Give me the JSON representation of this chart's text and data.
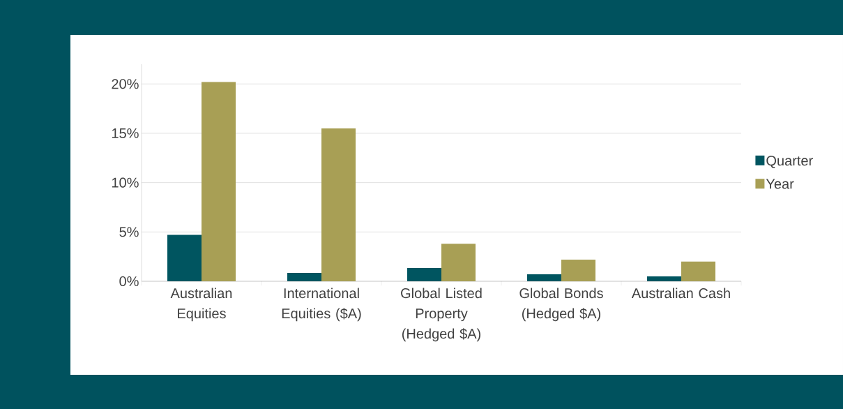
{
  "chart_data": {
    "type": "bar",
    "categories": [
      "Australian Equities",
      "International Equities ($A)",
      "Global Listed Property (Hedged $A)",
      "Global Bonds (Hedged $A)",
      "Australian Cash"
    ],
    "series": [
      {
        "name": "Quarter",
        "color": "#005560",
        "values": [
          4.7,
          0.85,
          1.35,
          0.7,
          0.5
        ]
      },
      {
        "name": "Year",
        "color": "#a89f55",
        "values": [
          20.2,
          15.5,
          3.8,
          2.2,
          2.0
        ]
      }
    ],
    "ylim": [
      0,
      22
    ],
    "yticks": [
      {
        "value": 0,
        "label": "0%"
      },
      {
        "value": 5,
        "label": "5%"
      },
      {
        "value": 10,
        "label": "10%"
      },
      {
        "value": 15,
        "label": "15%"
      },
      {
        "value": 20,
        "label": "20%"
      }
    ],
    "grid": "y",
    "legend": "right"
  }
}
